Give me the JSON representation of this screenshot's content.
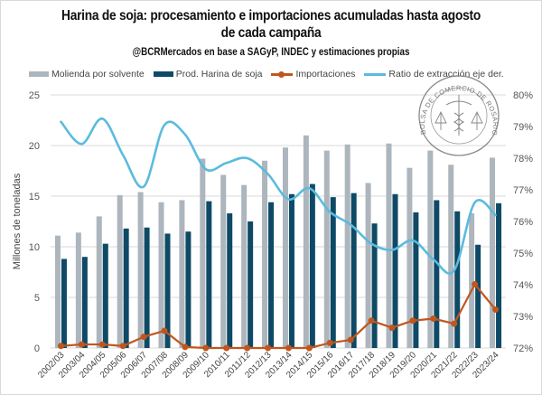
{
  "header": {
    "title_line1": "Harina de soja: procesamiento e importaciones acumuladas hasta agosto",
    "title_line2": "de cada campaña",
    "subtitle": "@BCRMercados en base a SAGyP, INDEC y estimaciones propias"
  },
  "logo": {
    "text": "BOLSA DE COMERCIO DE ROSARIO"
  },
  "colors": {
    "molienda": "#adb5bd",
    "harina": "#0e4a66",
    "importaciones": "#c0561d",
    "ratio": "#5bbbdd",
    "grid": "#d9d9d9"
  },
  "chart_data": {
    "type": "bar",
    "title": "Harina de soja: procesamiento e importaciones acumuladas hasta agosto de cada campaña",
    "subtitle": "@BCRMercados en base a SAGyP, INDEC y estimaciones propias",
    "xlabel": "",
    "ylabel": "Millones de toneladas",
    "y2label": "Ratio de extracción",
    "ylim": [
      0,
      25
    ],
    "y2lim": [
      72,
      80
    ],
    "yticks": [
      "0",
      "5",
      "10",
      "15",
      "20",
      "25"
    ],
    "y2ticks": [
      "72%",
      "73%",
      "74%",
      "75%",
      "76%",
      "77%",
      "78%",
      "79%",
      "80%"
    ],
    "grid": true,
    "legend_position": "top",
    "categories": [
      "2002/03",
      "2003/04",
      "2004/05",
      "2005/06",
      "2006/07",
      "2007/08",
      "2008/09",
      "2009/10",
      "2010/11",
      "2011/12",
      "2012/13",
      "2013/14",
      "2014/15",
      "2015/16",
      "2016/17",
      "2017/18",
      "2018/19",
      "2019/20",
      "2020/21",
      "2021/22",
      "2022/23",
      "2023/24"
    ],
    "series": [
      {
        "name": "Molienda por solvente",
        "type": "bar",
        "axis": "left",
        "values": [
          11.1,
          11.4,
          13.0,
          15.1,
          15.4,
          14.4,
          14.6,
          18.7,
          17.1,
          16.1,
          18.5,
          19.8,
          21.0,
          19.5,
          20.1,
          16.3,
          20.2,
          17.8,
          19.5,
          18.1,
          13.3,
          18.8
        ]
      },
      {
        "name": "Prod. Harina de soja",
        "type": "bar",
        "axis": "left",
        "values": [
          8.8,
          9.0,
          10.3,
          11.8,
          11.9,
          11.3,
          11.5,
          14.5,
          13.3,
          12.5,
          14.4,
          15.2,
          16.2,
          14.9,
          15.3,
          12.3,
          15.2,
          13.4,
          14.6,
          13.5,
          10.2,
          14.3
        ]
      },
      {
        "name": "Importaciones",
        "type": "line-marker",
        "axis": "left",
        "values": [
          0.2,
          0.35,
          0.35,
          0.2,
          1.1,
          1.7,
          0.1,
          0.0,
          0.0,
          0.0,
          0.0,
          0.0,
          0.0,
          0.5,
          0.8,
          2.7,
          2.0,
          2.7,
          2.9,
          2.4,
          6.3,
          3.8
        ]
      },
      {
        "name": "Ratio de extracción eje der.",
        "type": "smooth-line",
        "axis": "right",
        "values": [
          79.15,
          78.45,
          79.25,
          78.1,
          77.1,
          79.05,
          78.75,
          77.65,
          77.85,
          78.0,
          77.5,
          76.7,
          77.05,
          76.3,
          75.9,
          75.3,
          75.1,
          75.4,
          74.8,
          74.45,
          76.6,
          76.2
        ]
      }
    ]
  }
}
